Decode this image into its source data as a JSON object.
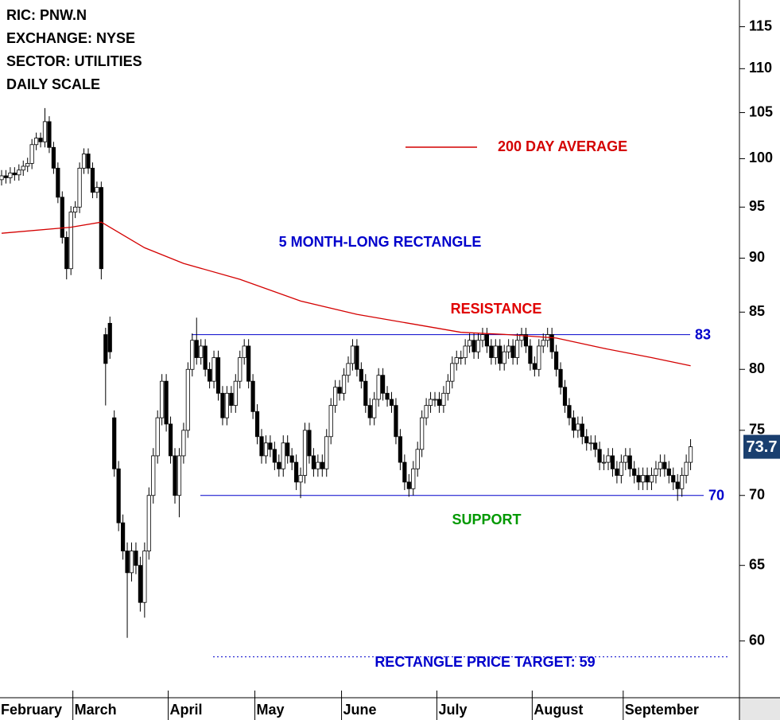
{
  "header": [
    "RIC: PNW.N",
    "EXCHANGE: NYSE",
    "SECTOR: UTILITIES",
    "DAILY SCALE"
  ],
  "chart_data": {
    "type": "candlestick",
    "log_scale": true,
    "categories": [
      "February",
      null,
      null,
      null,
      null,
      null,
      null,
      null,
      null,
      null,
      null,
      null,
      null,
      null,
      null,
      null,
      null,
      "March",
      null,
      null,
      null,
      null,
      null,
      null,
      null,
      null,
      null,
      null,
      null,
      null,
      null,
      null,
      null,
      null,
      null,
      null,
      null,
      null,
      null,
      "April",
      null,
      null,
      null,
      null,
      null,
      null,
      null,
      null,
      null,
      null,
      null,
      null,
      null,
      null,
      null,
      null,
      null,
      null,
      null,
      "May",
      null,
      null,
      null,
      null,
      null,
      null,
      null,
      null,
      null,
      null,
      null,
      null,
      null,
      null,
      null,
      null,
      null,
      null,
      null,
      "June",
      null,
      null,
      null,
      null,
      null,
      null,
      null,
      null,
      null,
      null,
      null,
      null,
      null,
      null,
      null,
      null,
      null,
      null,
      null,
      null,
      null,
      "July",
      null,
      null,
      null,
      null,
      null,
      null,
      null,
      null,
      null,
      null,
      null,
      null,
      null,
      null,
      null,
      null,
      null,
      null,
      null,
      null,
      null,
      "August",
      null,
      null,
      null,
      null,
      null,
      null,
      null,
      null,
      null,
      null,
      null,
      null,
      null,
      null,
      null,
      null,
      null,
      null,
      null,
      null,
      "September",
      null,
      null,
      null,
      null,
      null,
      null,
      null,
      null,
      null,
      null,
      null,
      null,
      null,
      null,
      null
    ],
    "open": [
      97.8,
      98.2,
      98.0,
      98.5,
      98.3,
      98.8,
      99.2,
      99.5,
      101.5,
      102.2,
      101.8,
      104.0,
      101.2,
      99.0,
      96.0,
      92.0,
      89.0,
      94.5,
      95.0,
      99.0,
      100.5,
      99.0,
      96.5,
      97.0,
      83.0,
      84.0,
      76.0,
      72.0,
      68.0,
      66.0,
      64.5,
      66.0,
      65.0,
      62.5,
      66.0,
      70.0,
      73.0,
      76.0,
      79.0,
      75.5,
      73.0,
      70.0,
      73.0,
      75.0,
      80.0,
      82.5,
      81.0,
      82.0,
      80.0,
      79.0,
      81.0,
      78.0,
      76.0,
      78.0,
      77.0,
      79.0,
      81.0,
      82.0,
      79.0,
      76.5,
      74.5,
      73.0,
      74.0,
      73.5,
      72.5,
      72.0,
      74.0,
      73.0,
      72.5,
      71.0,
      71.5,
      75.0,
      73.0,
      72.0,
      72.5,
      72.0,
      74.5,
      77.0,
      78.5,
      78.0,
      79.5,
      80.5,
      82.0,
      80.0,
      79.0,
      77.0,
      76.0,
      77.5,
      79.5,
      78.0,
      77.5,
      77.0,
      74.5,
      72.5,
      71.0,
      70.5,
      72.0,
      73.5,
      76.0,
      77.0,
      77.5,
      77.5,
      77.0,
      78.0,
      79.0,
      80.5,
      81.0,
      81.0,
      82.0,
      82.5,
      81.5,
      82.5,
      83.0,
      82.0,
      81.0,
      82.0,
      80.5,
      81.5,
      82.0,
      81.0,
      82.5,
      83.0,
      82.0,
      80.5,
      80.0,
      82.0,
      82.5,
      83.0,
      81.5,
      80.0,
      78.5,
      77.0,
      76.0,
      75.0,
      75.5,
      74.5,
      74.0,
      74.0,
      73.5,
      72.5,
      72.5,
      73.0,
      72.0,
      71.5,
      72.5,
      73.0,
      72.0,
      71.5,
      71.0,
      71.5,
      71.0,
      71.5,
      72.0,
      72.5,
      72.0,
      71.5,
      71.0,
      70.5,
      71.5,
      72.5
    ],
    "high": [
      98.8,
      98.8,
      99.1,
      99.1,
      99.4,
      99.8,
      100.1,
      102.1,
      102.8,
      102.8,
      105.5,
      104.6,
      101.8,
      99.6,
      96.6,
      92.6,
      95.1,
      95.6,
      99.6,
      101.1,
      101.1,
      99.6,
      97.6,
      97.6,
      83.6,
      84.6,
      76.6,
      72.6,
      68.6,
      66.6,
      66.6,
      66.6,
      65.6,
      66.6,
      70.6,
      73.6,
      76.6,
      79.6,
      79.6,
      76.1,
      73.6,
      73.6,
      75.6,
      80.6,
      83.1,
      84.5,
      82.6,
      82.6,
      80.6,
      81.6,
      81.6,
      78.6,
      78.6,
      78.6,
      79.6,
      81.6,
      82.6,
      82.6,
      79.6,
      77.1,
      75.1,
      74.6,
      74.6,
      74.1,
      73.1,
      74.6,
      74.6,
      73.6,
      73.1,
      72.1,
      75.6,
      75.6,
      73.6,
      73.1,
      73.1,
      75.1,
      77.6,
      79.1,
      79.1,
      80.1,
      81.1,
      82.6,
      82.6,
      80.6,
      79.6,
      77.6,
      78.1,
      80.1,
      80.1,
      78.6,
      78.1,
      77.6,
      75.1,
      73.1,
      71.6,
      72.6,
      74.1,
      76.6,
      77.6,
      78.1,
      78.1,
      78.1,
      78.6,
      79.6,
      81.1,
      81.6,
      81.6,
      82.6,
      83.1,
      83.1,
      83.1,
      83.6,
      83.6,
      82.6,
      82.6,
      82.6,
      82.1,
      82.6,
      82.6,
      83.1,
      83.6,
      83.6,
      82.6,
      81.1,
      82.6,
      83.1,
      83.6,
      83.6,
      82.1,
      80.6,
      79.1,
      77.6,
      76.6,
      76.1,
      76.1,
      75.1,
      74.6,
      74.6,
      74.1,
      73.1,
      73.6,
      73.6,
      72.6,
      73.1,
      73.6,
      73.6,
      72.6,
      72.1,
      72.1,
      72.1,
      72.1,
      72.6,
      73.1,
      73.1,
      72.6,
      72.1,
      71.6,
      72.1,
      73.1,
      74.3
    ],
    "low": [
      97.2,
      97.4,
      97.4,
      97.7,
      97.7,
      98.2,
      98.6,
      98.9,
      100.9,
      101.2,
      101.2,
      100.6,
      98.4,
      95.4,
      91.4,
      88,
      88.4,
      93.9,
      94.4,
      98.4,
      98.4,
      95.9,
      95.9,
      88,
      77,
      80.9,
      71.4,
      67.4,
      65.4,
      60.2,
      63.9,
      64.4,
      61.9,
      61.5,
      65.4,
      69.4,
      72.4,
      75.4,
      74.9,
      72.4,
      69.4,
      68.4,
      72.4,
      74.4,
      79.4,
      80.4,
      80.4,
      79.4,
      78.4,
      78.4,
      77.4,
      75.4,
      75.4,
      76.4,
      76.4,
      78.4,
      80.4,
      78.4,
      75.9,
      73.9,
      72.4,
      72.4,
      72.9,
      71.9,
      71.4,
      71.4,
      72.4,
      71.9,
      70.4,
      69.8,
      70.9,
      72.4,
      71.4,
      71.4,
      71.4,
      71.4,
      73.9,
      76.4,
      77.4,
      77.4,
      78.9,
      79.9,
      79.4,
      78.4,
      76.4,
      75.4,
      75.4,
      76.9,
      77.4,
      76.9,
      76.4,
      73.9,
      71.9,
      70.4,
      69.9,
      70,
      71.4,
      72.9,
      75.4,
      76.4,
      76.9,
      76.4,
      76.4,
      77.4,
      78.4,
      79.9,
      80.4,
      80.4,
      81.4,
      80.9,
      80.9,
      81.9,
      81.4,
      80.4,
      80.4,
      79.9,
      79.9,
      80.9,
      80.4,
      80.4,
      81.9,
      81.4,
      79.9,
      79.4,
      79.4,
      81.4,
      81.9,
      80.9,
      79.4,
      77.9,
      76.4,
      75.4,
      74.4,
      74.4,
      73.9,
      73.4,
      73.4,
      72.9,
      71.9,
      71.9,
      71.9,
      71.4,
      70.9,
      70.9,
      71.9,
      71.4,
      70.9,
      70.4,
      70.4,
      70.4,
      70.4,
      70.9,
      71.4,
      71.4,
      70.9,
      70.4,
      69.6,
      69.9,
      70.9,
      71.9
    ],
    "close": [
      98.2,
      98.0,
      98.5,
      98.3,
      98.8,
      99.2,
      99.5,
      101.5,
      102.2,
      101.8,
      104.0,
      101.2,
      99.0,
      96.0,
      92.0,
      89.0,
      94.5,
      95.0,
      99.0,
      100.5,
      99.0,
      96.5,
      97.0,
      89.0,
      80.5,
      81.5,
      72.0,
      68.0,
      66.0,
      64.5,
      66.0,
      65.0,
      62.5,
      66.0,
      70.0,
      73.0,
      76.0,
      79.0,
      75.5,
      73.0,
      70.0,
      73.0,
      75.0,
      80.0,
      82.5,
      81.0,
      82.0,
      80.0,
      79.0,
      81.0,
      78.0,
      76.0,
      78.0,
      77.0,
      79.0,
      81.0,
      82.0,
      79.0,
      76.5,
      74.5,
      73.0,
      74.0,
      73.5,
      72.5,
      72.0,
      74.0,
      73.0,
      72.5,
      71.0,
      71.5,
      75.0,
      73.0,
      72.0,
      72.5,
      72.0,
      74.5,
      77.0,
      78.5,
      78.0,
      79.5,
      80.5,
      82.0,
      80.0,
      79.0,
      77.0,
      76.0,
      77.5,
      79.5,
      78.0,
      77.5,
      77.0,
      74.5,
      72.5,
      71.0,
      70.5,
      72.0,
      73.5,
      76.0,
      77.0,
      77.5,
      77.5,
      77.0,
      78.0,
      79.0,
      80.5,
      81.0,
      81.0,
      82.0,
      82.5,
      81.5,
      82.5,
      83.0,
      82.0,
      81.0,
      82.0,
      80.5,
      81.5,
      82.0,
      81.0,
      82.5,
      83.0,
      82.0,
      80.5,
      80.0,
      82.0,
      82.5,
      83.0,
      81.5,
      80.0,
      78.5,
      77.0,
      76.0,
      75.0,
      75.5,
      74.5,
      74.0,
      74.0,
      73.5,
      72.5,
      72.5,
      73.0,
      72.0,
      71.5,
      72.5,
      73.0,
      72.0,
      71.5,
      71.0,
      71.5,
      71.0,
      71.5,
      72.0,
      72.5,
      72.0,
      71.5,
      71.0,
      70.5,
      71.5,
      72.5,
      73.7
    ],
    "series": [
      {
        "name": "200 DAY AVERAGE",
        "color": "#d40000",
        "x": [
          0,
          16,
          23,
          33,
          42,
          55,
          69,
          82,
          97,
          106,
          117,
          128,
          139,
          150,
          159
        ],
        "values": [
          92.4,
          93,
          93.5,
          91,
          89.5,
          88,
          86,
          84.8,
          83.8,
          83.2,
          83,
          82.7,
          81.8,
          81,
          80.3
        ]
      }
    ],
    "levels": [
      {
        "value": 83,
        "color": "#0000cc",
        "style": "solid"
      },
      {
        "value": 70,
        "color": "#0000cc",
        "style": "solid"
      },
      {
        "value": 59,
        "color": "#0000cc",
        "style": "dotted"
      }
    ],
    "annotations": [
      {
        "text": "5 MONTH-LONG RECTANGLE",
        "color": "#0000cc"
      },
      {
        "text": "RESISTANCE",
        "color": "#e00000"
      },
      {
        "text": "SUPPORT",
        "color": "#009900"
      },
      {
        "text": "RECTANGLE PRICE TARGET: 59",
        "color": "#0000cc"
      }
    ],
    "ylim": [
      56.5,
      118.3
    ],
    "yticks": [
      60,
      65,
      70,
      75,
      80,
      85,
      90,
      95,
      100,
      105,
      110,
      115
    ],
    "last_price_color": "#1a3f6f"
  }
}
